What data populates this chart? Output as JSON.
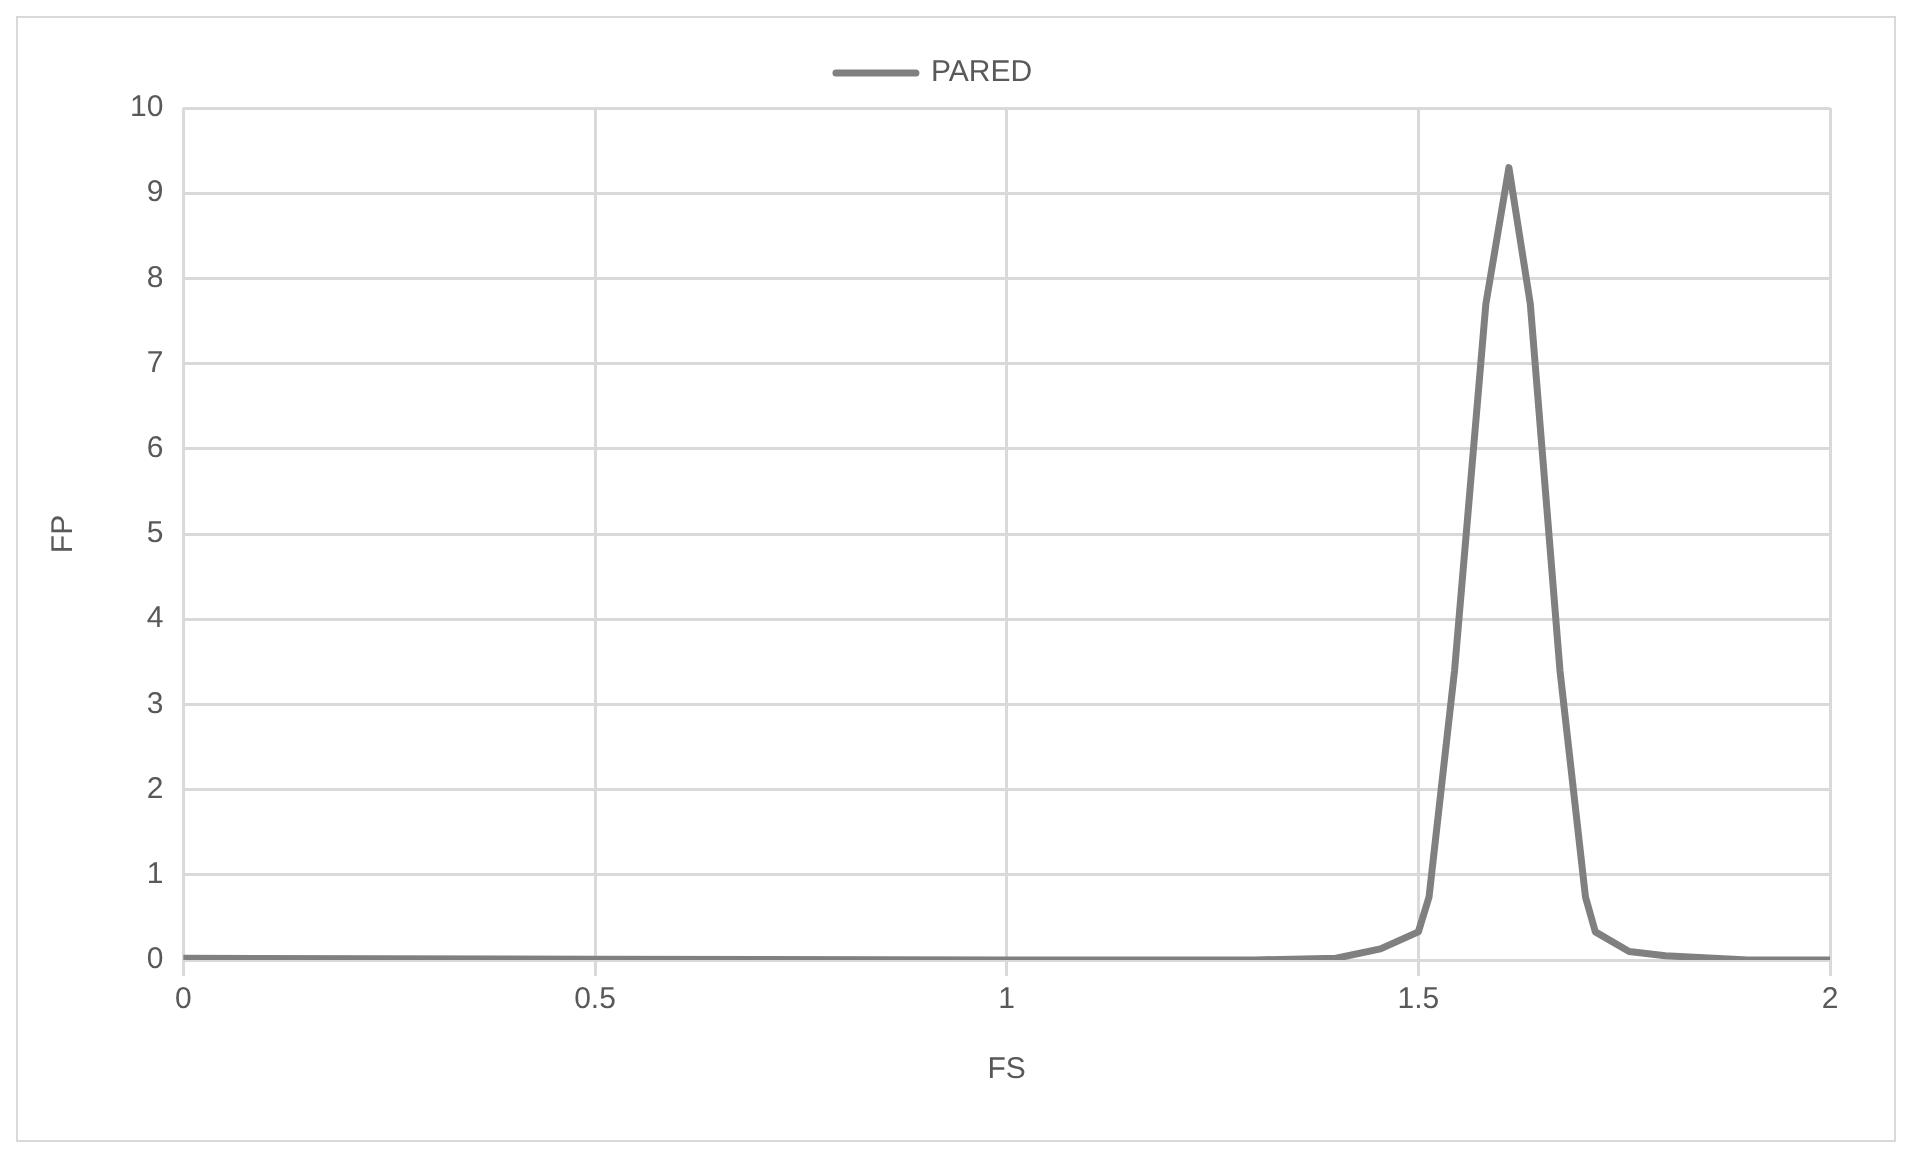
{
  "chart_data": {
    "type": "line",
    "xlabel": "FS",
    "ylabel": "FP",
    "x": [
      0,
      0.5,
      1,
      1.3,
      1.4,
      1.454,
      1.5,
      1.513,
      1.544,
      1.582,
      1.61,
      1.636,
      1.672,
      1.703,
      1.715,
      1.756,
      1.8,
      1.9,
      2
    ],
    "series": [
      {
        "name": "PARED",
        "color": "#808080",
        "values": [
          0.02,
          0.01,
          0,
          0,
          0.02,
          0.13,
          0.33,
          0.74,
          3.4,
          7.7,
          9.3,
          7.7,
          3.4,
          0.74,
          0.33,
          0.1,
          0.05,
          0,
          0
        ]
      }
    ],
    "xlim": [
      0,
      2
    ],
    "xticks": [
      0,
      0.5,
      1,
      1.5,
      2
    ],
    "ylim": [
      0,
      10
    ],
    "yticks": [
      0,
      1,
      2,
      3,
      4,
      5,
      6,
      7,
      8,
      9,
      10
    ],
    "grid": true,
    "legend": "top",
    "marker": "none",
    "line_style": "solid"
  }
}
